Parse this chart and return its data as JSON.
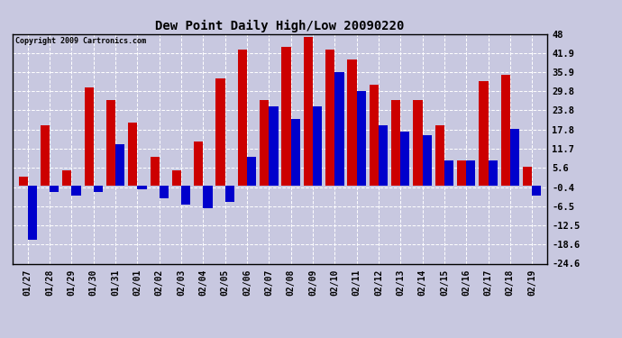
{
  "title": "Dew Point Daily High/Low 20090220",
  "copyright": "Copyright 2009 Cartronics.com",
  "dates": [
    "01/27",
    "01/28",
    "01/29",
    "01/30",
    "01/31",
    "02/01",
    "02/02",
    "02/03",
    "02/04",
    "02/05",
    "02/06",
    "02/07",
    "02/08",
    "02/09",
    "02/10",
    "02/11",
    "02/12",
    "02/13",
    "02/14",
    "02/15",
    "02/16",
    "02/17",
    "02/18",
    "02/19"
  ],
  "highs": [
    3.0,
    19.0,
    5.0,
    31.0,
    27.0,
    20.0,
    9.0,
    5.0,
    14.0,
    34.0,
    43.0,
    27.0,
    44.0,
    47.0,
    43.0,
    40.0,
    32.0,
    27.0,
    27.0,
    19.0,
    8.0,
    33.0,
    35.0,
    6.0
  ],
  "lows": [
    -17.0,
    -2.0,
    -3.0,
    -2.0,
    13.0,
    -1.0,
    -4.0,
    -6.0,
    -7.0,
    -5.0,
    9.0,
    25.0,
    21.0,
    25.0,
    36.0,
    30.0,
    19.0,
    17.0,
    16.0,
    8.0,
    8.0,
    8.0,
    18.0,
    -3.0
  ],
  "high_color": "#cc0000",
  "low_color": "#0000cc",
  "bg_color": "#c8c8e0",
  "plot_bg_color": "#c8c8e0",
  "grid_color": "#ffffff",
  "ylim": [
    -24.6,
    48.0
  ],
  "yticks": [
    48.0,
    41.9,
    35.9,
    29.8,
    23.8,
    17.8,
    11.7,
    5.6,
    -0.4,
    -6.5,
    -12.5,
    -18.6,
    -24.6
  ]
}
